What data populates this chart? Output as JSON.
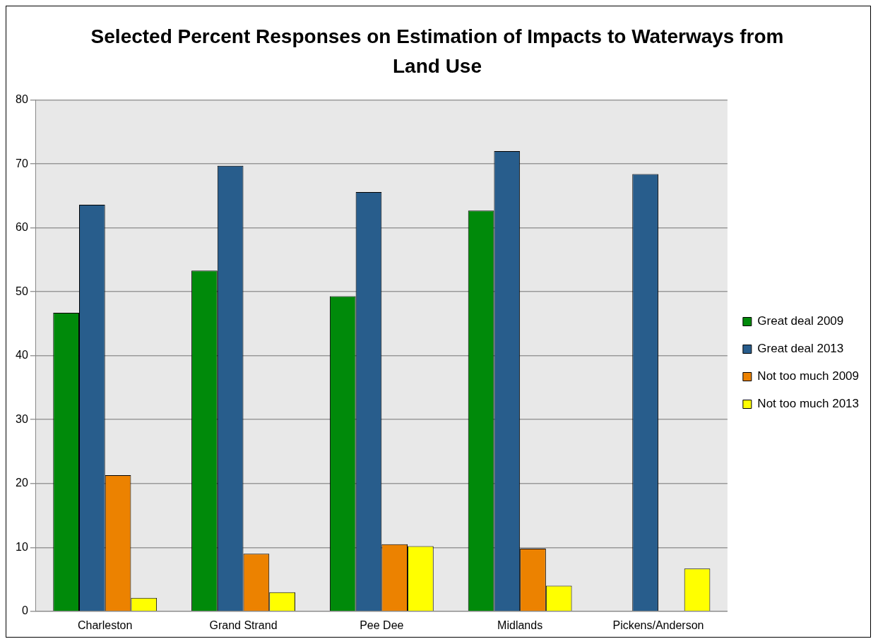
{
  "chart_data": {
    "type": "bar",
    "title": "Selected Percent Responses on Estimation of Impacts to Waterways from Land Use",
    "categories": [
      "Charleston",
      "Grand Strand",
      "Pee Dee",
      "Midlands",
      "Pickens/Anderson"
    ],
    "series": [
      {
        "name": "Great deal 2009",
        "color": "#008a0a",
        "values": [
          46.7,
          53.3,
          49.3,
          62.7,
          null
        ]
      },
      {
        "name": "Great deal 2013",
        "color": "#285d8c",
        "values": [
          63.6,
          69.7,
          65.6,
          72.0,
          68.4
        ]
      },
      {
        "name": "Not too much 2009",
        "color": "#ec8200",
        "values": [
          21.3,
          9.0,
          10.5,
          9.8,
          null
        ]
      },
      {
        "name": "Not too much 2013",
        "color": "#ffff00",
        "values": [
          2.1,
          3.0,
          10.2,
          4.0,
          6.7
        ]
      }
    ],
    "ylim": [
      0,
      80
    ],
    "yticks": [
      0,
      10,
      20,
      30,
      40,
      50,
      60,
      70,
      80
    ],
    "grid": "y",
    "legend": "right"
  }
}
